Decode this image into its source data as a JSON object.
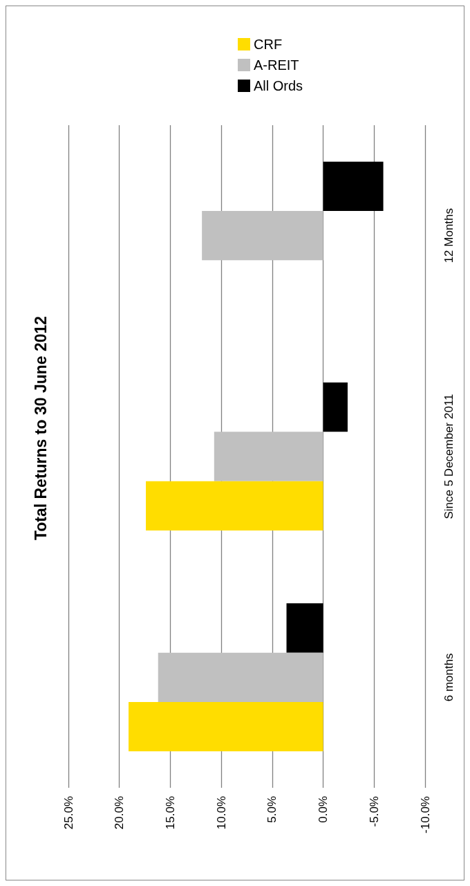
{
  "chart_data": {
    "type": "bar",
    "orientation": "horizontal",
    "title": "Total Returns to 30 June 2012",
    "categories": [
      "12 Months",
      "Since 5 December 2011",
      "6 months"
    ],
    "series": [
      {
        "name": "CRF",
        "color": "#ffdd00",
        "values": [
          null,
          17.4,
          19.1
        ]
      },
      {
        "name": "A-REIT",
        "color": "#c0c0c0",
        "values": [
          11.9,
          10.7,
          16.2
        ]
      },
      {
        "name": "All Ords",
        "color": "#000000",
        "values": [
          -5.9,
          -2.4,
          3.6
        ]
      }
    ],
    "xlim": [
      25,
      -10
    ],
    "xticks": [
      {
        "value": 25,
        "label": "25.0%"
      },
      {
        "value": 20,
        "label": "20.0%"
      },
      {
        "value": 15,
        "label": "15.0%"
      },
      {
        "value": 10,
        "label": "10.0%"
      },
      {
        "value": 5,
        "label": "5.0%"
      },
      {
        "value": 0,
        "label": "0.0%"
      },
      {
        "value": -5,
        "label": "-5.0%"
      },
      {
        "value": -10,
        "label": "-10.0%"
      }
    ],
    "grid": "x",
    "legend": "top right"
  }
}
